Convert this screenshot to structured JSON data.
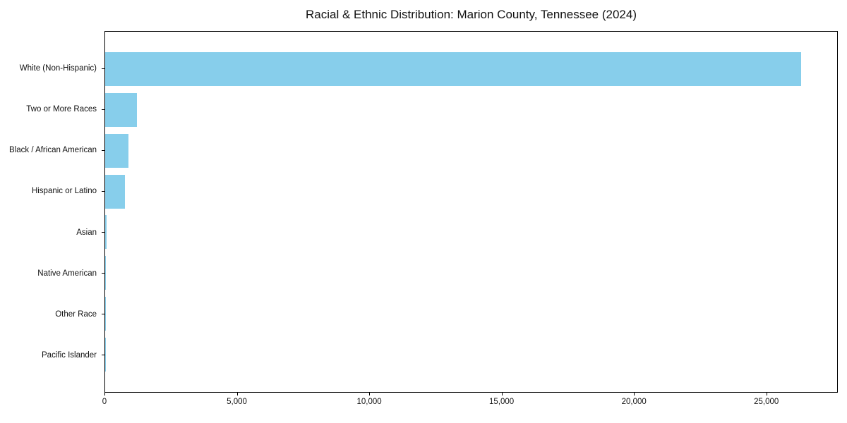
{
  "chart_data": {
    "type": "bar",
    "orientation": "horizontal",
    "title": "Racial & Ethnic Distribution: Marion County, Tennessee (2024)",
    "categories": [
      "White (Non-Hispanic)",
      "Two or More Races",
      "Black / African American",
      "Hispanic or Latino",
      "Asian",
      "Native American",
      "Other Race",
      "Pacific Islander"
    ],
    "values": [
      26340,
      1200,
      870,
      740,
      50,
      40,
      20,
      10
    ],
    "bar_color": "#87CEEB",
    "xlabel": "",
    "ylabel": "",
    "xlim": [
      0,
      27700
    ],
    "x_ticks": [
      0,
      5000,
      10000,
      15000,
      20000,
      25000
    ],
    "x_tick_labels": [
      "0",
      "5,000",
      "10,000",
      "15,000",
      "20,000",
      "25,000"
    ],
    "grid": false,
    "legend": "none",
    "plot_border_color": "#000000",
    "background_color": "#ffffff"
  }
}
